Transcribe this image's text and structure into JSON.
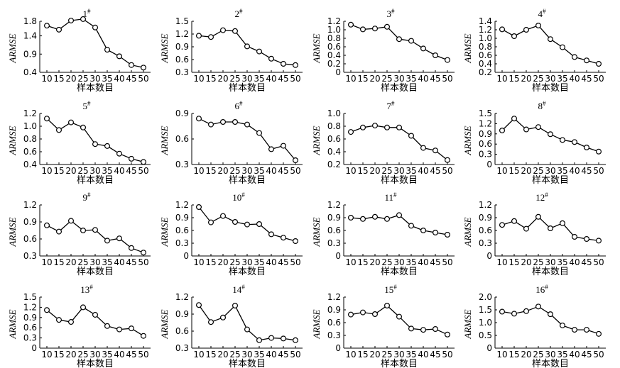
{
  "chart_data": [
    {
      "type": "line",
      "title": "1",
      "title_sup": "#",
      "xlabel": "样本数目",
      "ylabel": "ARMSE",
      "x": [
        10,
        15,
        20,
        25,
        30,
        35,
        40,
        45,
        50
      ],
      "ylim": [
        0.4,
        1.8
      ],
      "yticks": [
        "0.4",
        "0.9",
        "1.4",
        "1.8"
      ],
      "ytick_values": [
        0.4,
        0.9,
        1.4,
        1.8
      ],
      "values": [
        1.68,
        1.57,
        1.82,
        1.86,
        1.63,
        1.02,
        0.84,
        0.6,
        0.53
      ]
    },
    {
      "type": "line",
      "title": "2",
      "title_sup": "#",
      "xlabel": "样本数目",
      "ylabel": "ARMSE",
      "x": [
        10,
        15,
        20,
        25,
        30,
        35,
        40,
        45,
        50
      ],
      "ylim": [
        0.3,
        1.5
      ],
      "yticks": [
        "0.3",
        "0.6",
        "0.9",
        "1.2",
        "1.5"
      ],
      "ytick_values": [
        0.3,
        0.6,
        0.9,
        1.2,
        1.5
      ],
      "values": [
        1.16,
        1.13,
        1.29,
        1.27,
        0.91,
        0.79,
        0.62,
        0.5,
        0.47
      ]
    },
    {
      "type": "line",
      "title": "3",
      "title_sup": "#",
      "xlabel": "样本数目",
      "ylabel": "ARMSE",
      "x": [
        10,
        15,
        20,
        25,
        30,
        35,
        40,
        45,
        50
      ],
      "ylim": [
        0,
        1.2
      ],
      "yticks": [
        "0",
        "0.2",
        "0.4",
        "0.6",
        "0.8",
        "1.0",
        "1.2"
      ],
      "ytick_values": [
        0,
        0.2,
        0.4,
        0.6,
        0.8,
        1.0,
        1.2
      ],
      "values": [
        1.12,
        1.01,
        1.03,
        1.07,
        0.78,
        0.74,
        0.56,
        0.4,
        0.29
      ]
    },
    {
      "type": "line",
      "title": "4",
      "title_sup": "#",
      "xlabel": "样本数目",
      "ylabel": "ARMSE",
      "x": [
        10,
        15,
        20,
        25,
        30,
        35,
        40,
        45,
        50
      ],
      "ylim": [
        0.2,
        1.4
      ],
      "yticks": [
        "0.2",
        "0.4",
        "0.6",
        "0.8",
        "1.0",
        "1.2",
        "1.4"
      ],
      "ytick_values": [
        0.2,
        0.4,
        0.6,
        0.8,
        1.0,
        1.2,
        1.4
      ],
      "values": [
        1.21,
        1.05,
        1.2,
        1.3,
        0.98,
        0.79,
        0.56,
        0.48,
        0.4
      ]
    },
    {
      "type": "line",
      "title": "5",
      "title_sup": "#",
      "xlabel": "样本数目",
      "ylabel": "ARMSE",
      "x": [
        10,
        15,
        20,
        25,
        30,
        35,
        40,
        45,
        50
      ],
      "ylim": [
        0.4,
        1.2
      ],
      "yticks": [
        "0.4",
        "0.6",
        "0.8",
        "1.0",
        "1.2"
      ],
      "ytick_values": [
        0.4,
        0.6,
        0.8,
        1.0,
        1.2
      ],
      "values": [
        1.12,
        0.94,
        1.06,
        0.98,
        0.72,
        0.69,
        0.57,
        0.49,
        0.44
      ]
    },
    {
      "type": "line",
      "title": "6",
      "title_sup": "#",
      "xlabel": "样本数目",
      "ylabel": "ARMSE",
      "x": [
        10,
        15,
        20,
        25,
        30,
        35,
        40,
        45,
        50
      ],
      "ylim": [
        0.3,
        0.9
      ],
      "yticks": [
        "0.3",
        "0.6",
        "0.9"
      ],
      "ytick_values": [
        0.3,
        0.6,
        0.9
      ],
      "values": [
        0.84,
        0.77,
        0.8,
        0.8,
        0.77,
        0.67,
        0.48,
        0.52,
        0.35
      ]
    },
    {
      "type": "line",
      "title": "7",
      "title_sup": "#",
      "xlabel": "样本数目",
      "ylabel": "ARMSE",
      "x": [
        10,
        15,
        20,
        25,
        30,
        35,
        40,
        45,
        50
      ],
      "ylim": [
        0.2,
        1.0
      ],
      "yticks": [
        "0.2",
        "0.4",
        "0.6",
        "0.8",
        "1.0"
      ],
      "ytick_values": [
        0.2,
        0.4,
        0.6,
        0.8,
        1.0
      ],
      "values": [
        0.71,
        0.78,
        0.81,
        0.78,
        0.78,
        0.65,
        0.46,
        0.42,
        0.27
      ]
    },
    {
      "type": "line",
      "title": "8",
      "title_sup": "#",
      "xlabel": "样本数目",
      "ylabel": "ARMSE",
      "x": [
        10,
        15,
        20,
        25,
        30,
        35,
        40,
        45,
        50
      ],
      "ylim": [
        0,
        1.5
      ],
      "yticks": [
        "0",
        "0.3",
        "0.6",
        "0.9",
        "1.2",
        "1.5"
      ],
      "ytick_values": [
        0,
        0.3,
        0.6,
        0.9,
        1.2,
        1.5
      ],
      "values": [
        1.0,
        1.35,
        1.03,
        1.1,
        0.89,
        0.72,
        0.66,
        0.5,
        0.38
      ]
    },
    {
      "type": "line",
      "title": "9",
      "title_sup": "#",
      "xlabel": "样本数目",
      "ylabel": "ARMSE",
      "x": [
        10,
        15,
        20,
        25,
        30,
        35,
        40,
        45,
        50
      ],
      "ylim": [
        0.3,
        1.2
      ],
      "yticks": [
        "0.3",
        "0.6",
        "0.9",
        "1.2"
      ],
      "ytick_values": [
        0.3,
        0.6,
        0.9,
        1.2
      ],
      "values": [
        0.84,
        0.73,
        0.92,
        0.75,
        0.76,
        0.57,
        0.61,
        0.44,
        0.36
      ]
    },
    {
      "type": "line",
      "title": "10",
      "title_sup": "#",
      "xlabel": "样本数目",
      "ylabel": "ARMSE",
      "x": [
        10,
        15,
        20,
        25,
        30,
        35,
        40,
        45,
        50
      ],
      "ylim": [
        0,
        1.2
      ],
      "yticks": [
        "0",
        "0.3",
        "0.6",
        "0.9",
        "1.2"
      ],
      "ytick_values": [
        0,
        0.3,
        0.6,
        0.9,
        1.2
      ],
      "values": [
        1.15,
        0.79,
        0.94,
        0.8,
        0.74,
        0.75,
        0.51,
        0.43,
        0.35
      ]
    },
    {
      "type": "line",
      "title": "11",
      "title_sup": "#",
      "xlabel": "样本数目",
      "ylabel": "ARMSE",
      "x": [
        10,
        15,
        20,
        25,
        30,
        35,
        40,
        45,
        50
      ],
      "ylim": [
        0,
        1.2
      ],
      "yticks": [
        "0",
        "0.3",
        "0.6",
        "0.9",
        "1.2"
      ],
      "ytick_values": [
        0,
        0.3,
        0.6,
        0.9,
        1.2
      ],
      "values": [
        0.9,
        0.87,
        0.92,
        0.87,
        0.96,
        0.71,
        0.6,
        0.55,
        0.5
      ]
    },
    {
      "type": "line",
      "title": "12",
      "title_sup": "#",
      "xlabel": "样本数目",
      "ylabel": "ARMSE",
      "x": [
        10,
        15,
        20,
        25,
        30,
        35,
        40,
        45,
        50
      ],
      "ylim": [
        0,
        1.2
      ],
      "yticks": [
        "0",
        "0.3",
        "0.6",
        "0.9",
        "1.2"
      ],
      "ytick_values": [
        0,
        0.3,
        0.6,
        0.9,
        1.2
      ],
      "values": [
        0.73,
        0.82,
        0.64,
        0.92,
        0.65,
        0.77,
        0.45,
        0.4,
        0.36
      ]
    },
    {
      "type": "line",
      "title": "13",
      "title_sup": "#",
      "xlabel": "样本数目",
      "ylabel": "ARMSE",
      "x": [
        10,
        15,
        20,
        25,
        30,
        35,
        40,
        45,
        50
      ],
      "ylim": [
        0,
        1.5
      ],
      "yticks": [
        "0",
        "0.3",
        "0.6",
        "0.9",
        "1.2",
        "1.5"
      ],
      "ytick_values": [
        0,
        0.3,
        0.6,
        0.9,
        1.2,
        1.5
      ],
      "values": [
        1.12,
        0.83,
        0.77,
        1.2,
        0.98,
        0.65,
        0.55,
        0.58,
        0.36
      ]
    },
    {
      "type": "line",
      "title": "14",
      "title_sup": "#",
      "xlabel": "样本数目",
      "ylabel": "ARMSE",
      "x": [
        10,
        15,
        20,
        25,
        30,
        35,
        40,
        45,
        50
      ],
      "ylim": [
        0.3,
        1.2
      ],
      "yticks": [
        "0.3",
        "0.6",
        "0.9",
        "1.2"
      ],
      "ytick_values": [
        0.3,
        0.6,
        0.9,
        1.2
      ],
      "values": [
        1.06,
        0.76,
        0.84,
        1.05,
        0.63,
        0.44,
        0.48,
        0.47,
        0.44
      ]
    },
    {
      "type": "line",
      "title": "15",
      "title_sup": "#",
      "xlabel": "样本数目",
      "ylabel": "ARMSE",
      "x": [
        10,
        15,
        20,
        25,
        30,
        35,
        40,
        45,
        50
      ],
      "ylim": [
        0,
        1.2
      ],
      "yticks": [
        "0",
        "0.3",
        "0.6",
        "0.9",
        "1.2"
      ],
      "ytick_values": [
        0,
        0.3,
        0.6,
        0.9,
        1.2
      ],
      "values": [
        0.79,
        0.84,
        0.8,
        1.0,
        0.74,
        0.46,
        0.43,
        0.45,
        0.32
      ]
    },
    {
      "type": "line",
      "title": "16",
      "title_sup": "#",
      "xlabel": "样本数目",
      "ylabel": "ARMSE",
      "x": [
        10,
        15,
        20,
        25,
        30,
        35,
        40,
        45,
        50
      ],
      "ylim": [
        0,
        2.0
      ],
      "yticks": [
        "0",
        "0.5",
        "1.0",
        "1.5",
        "2.0"
      ],
      "ytick_values": [
        0,
        0.5,
        1.0,
        1.5,
        2.0
      ],
      "values": [
        1.43,
        1.35,
        1.45,
        1.63,
        1.33,
        0.89,
        0.72,
        0.72,
        0.56
      ]
    }
  ]
}
